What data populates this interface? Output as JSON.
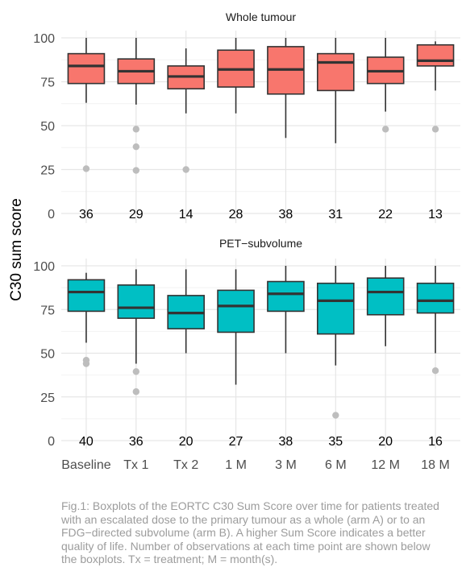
{
  "chart_data": {
    "type": "boxplot",
    "ylabel": "C30 sum score",
    "categories": [
      "Baseline",
      "Tx 1",
      "Tx 2",
      "1 M",
      "3 M",
      "6 M",
      "12 M",
      "18 M"
    ],
    "ylim": [
      0,
      100
    ],
    "yticks": [
      0,
      25,
      50,
      75,
      100
    ],
    "grid": true,
    "panels": [
      {
        "title": "Whole tumour",
        "fill_color": "#f8766d",
        "boxes": [
          {
            "min": 63,
            "q1": 74,
            "median": 84,
            "q3": 91,
            "max": 100,
            "outliers": [
              25.5
            ],
            "n": 36
          },
          {
            "min": 62,
            "q1": 74,
            "median": 81,
            "q3": 88,
            "max": 100,
            "outliers": [
              48,
              38,
              24.5
            ],
            "n": 29
          },
          {
            "min": 57,
            "q1": 71,
            "median": 78,
            "q3": 84,
            "max": 94,
            "outliers": [
              25
            ],
            "n": 14
          },
          {
            "min": 57,
            "q1": 72,
            "median": 82,
            "q3": 93,
            "max": 100,
            "outliers": [],
            "n": 28
          },
          {
            "min": 43,
            "q1": 68,
            "median": 82,
            "q3": 95,
            "max": 100,
            "outliers": [],
            "n": 38
          },
          {
            "min": 40,
            "q1": 70,
            "median": 86,
            "q3": 91,
            "max": 100,
            "outliers": [],
            "n": 31
          },
          {
            "min": 58,
            "q1": 74,
            "median": 81,
            "q3": 89,
            "max": 100,
            "outliers": [
              48
            ],
            "n": 22
          },
          {
            "min": 70,
            "q1": 84,
            "median": 87,
            "q3": 96,
            "max": 98,
            "outliers": [
              48
            ],
            "n": 13
          }
        ]
      },
      {
        "title": "PET−subvolume",
        "fill_color": "#00bfc4",
        "boxes": [
          {
            "min": 56,
            "q1": 74,
            "median": 85,
            "q3": 92,
            "max": 96,
            "outliers": [
              46,
              44
            ],
            "n": 40
          },
          {
            "min": 44,
            "q1": 70,
            "median": 76,
            "q3": 89,
            "max": 98,
            "outliers": [
              39.5,
              28
            ],
            "n": 36
          },
          {
            "min": 50,
            "q1": 64,
            "median": 73,
            "q3": 83,
            "max": 98,
            "outliers": [],
            "n": 20
          },
          {
            "min": 32,
            "q1": 62,
            "median": 77,
            "q3": 86,
            "max": 98,
            "outliers": [],
            "n": 27
          },
          {
            "min": 50,
            "q1": 74,
            "median": 84,
            "q3": 91,
            "max": 100,
            "outliers": [],
            "n": 38
          },
          {
            "min": 43,
            "q1": 61,
            "median": 80,
            "q3": 90,
            "max": 100,
            "outliers": [
              14.5
            ],
            "n": 35
          },
          {
            "min": 54,
            "q1": 72,
            "median": 85,
            "q3": 93,
            "max": 100,
            "outliers": [],
            "n": 20
          },
          {
            "min": 50,
            "q1": 73,
            "median": 80,
            "q3": 90,
            "max": 100,
            "outliers": [
              40
            ],
            "n": 16
          }
        ]
      }
    ]
  },
  "caption": "Fig.1: Boxplots of the EORTC C30 Sum Score over time for patients treated with an escalated dose to the primary tumour as a whole (arm A) or to an FDG−directed subvolume (arm B). A higher Sum Score indicates a better quality of life. Number of observations at each time point are shown below the boxplots. Tx = treatment; M = month(s)."
}
